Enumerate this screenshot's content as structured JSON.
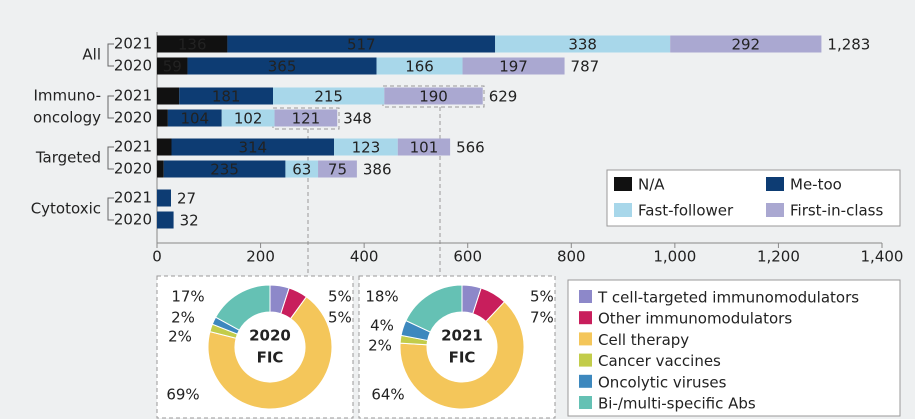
{
  "chart_data": [
    {
      "type": "stacked-bar",
      "groups": [
        [
          "All"
        ],
        [
          "Immuno-",
          "oncology"
        ],
        [
          "Targeted"
        ],
        [
          "Cytotoxic"
        ]
      ],
      "categories": [
        "2021",
        "2020",
        "2021",
        "2020",
        "2021",
        "2020",
        "2021",
        "2020"
      ],
      "series": [
        {
          "name": "N/A",
          "color": "#111111",
          "values": [
            136,
            59,
            43,
            21,
            28,
            13,
            null,
            null
          ],
          "value_labels": [
            "136",
            "59",
            null,
            null,
            null,
            null,
            null,
            null
          ]
        },
        {
          "name": "Me-too",
          "color": "#0d3c73",
          "values": [
            517,
            365,
            181,
            104,
            314,
            235,
            27,
            32
          ],
          "value_labels": [
            "517",
            "365",
            "181",
            "104",
            "314",
            "235",
            null,
            null
          ]
        },
        {
          "name": "Fast-follower",
          "color": "#a8d7ea",
          "values": [
            338,
            166,
            215,
            102,
            123,
            63,
            null,
            null
          ]
        },
        {
          "name": "First-in-class",
          "color": "#aaa8d1",
          "values": [
            292,
            197,
            190,
            121,
            101,
            75,
            null,
            null
          ]
        }
      ],
      "totals": {
        "values": [
          1283,
          787,
          629,
          348,
          566,
          386,
          27,
          32
        ],
        "value_labels": [
          "1,283",
          "787",
          "629",
          "348",
          "566",
          "386",
          "27",
          "32"
        ]
      },
      "xlim": [
        0,
        1400
      ],
      "xticks": [
        0,
        200,
        400,
        600,
        800,
        {
          "value": 1000,
          "label": "1,000"
        },
        {
          "value": 1200,
          "label": "1,200"
        },
        {
          "value": 1400,
          "label": "1,400"
        }
      ],
      "legend": "lower right"
    },
    {
      "type": "donut",
      "title": [
        "2020",
        "FIC"
      ],
      "categories": [
        "T cell-targeted immunomodulators",
        "Other immunomodulators",
        "Cell therapy",
        "Cancer vaccines",
        "Oncolytic viruses",
        "Bi-/multi-specific Abs"
      ],
      "values": [
        5,
        5,
        69,
        2,
        2,
        17
      ],
      "value_labels": [
        "5%",
        "5%",
        "69%",
        "2%",
        "2%",
        "17%"
      ],
      "colors": [
        "#8d88c9",
        "#c81e5c",
        "#f4c65a",
        "#c2cc4a",
        "#3d88be",
        "#65c1b4"
      ]
    },
    {
      "type": "donut",
      "title": [
        "2021",
        "FIC"
      ],
      "categories": [
        "T cell-targeted immunomodulators",
        "Other immunomodulators",
        "Cell therapy",
        "Cancer vaccines",
        "Oncolytic viruses",
        "Bi-/multi-specific Abs"
      ],
      "values": [
        5,
        7,
        64,
        2,
        4,
        18
      ],
      "value_labels": [
        "5%",
        "7%",
        "64%",
        "2%",
        "4%",
        "18%"
      ],
      "colors": [
        "#8d88c9",
        "#c81e5c",
        "#f4c65a",
        "#c2cc4a",
        "#3d88be",
        "#65c1b4"
      ]
    }
  ]
}
